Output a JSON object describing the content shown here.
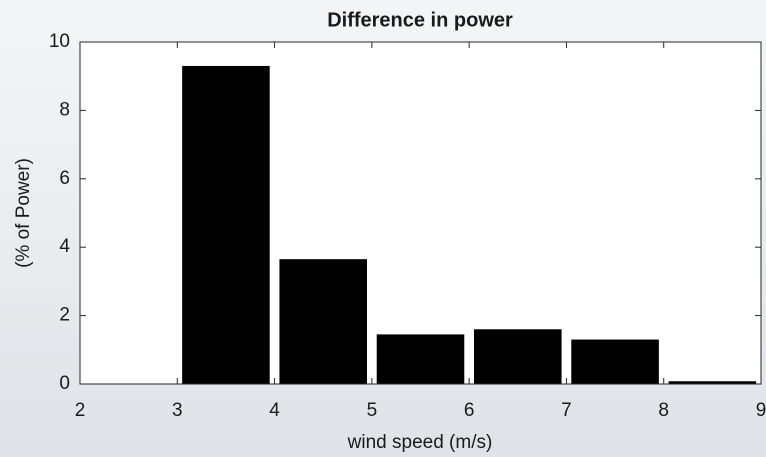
{
  "chart_data": {
    "type": "bar",
    "title": "Difference in power",
    "x_label": "wind speed (m/s)",
    "y_label": "(% of Power)",
    "x": [
      3.5,
      4.5,
      5.5,
      6.5,
      7.5,
      8.5
    ],
    "values": [
      9.3,
      3.65,
      1.45,
      1.6,
      1.3,
      0.08
    ],
    "color": "#000000",
    "xlim": [
      2,
      9
    ],
    "xticks": [
      2,
      3,
      4,
      5,
      6,
      7,
      8,
      9
    ],
    "ylim": [
      0,
      10
    ],
    "yticks": [
      0,
      2,
      4,
      6,
      8,
      10
    ]
  }
}
